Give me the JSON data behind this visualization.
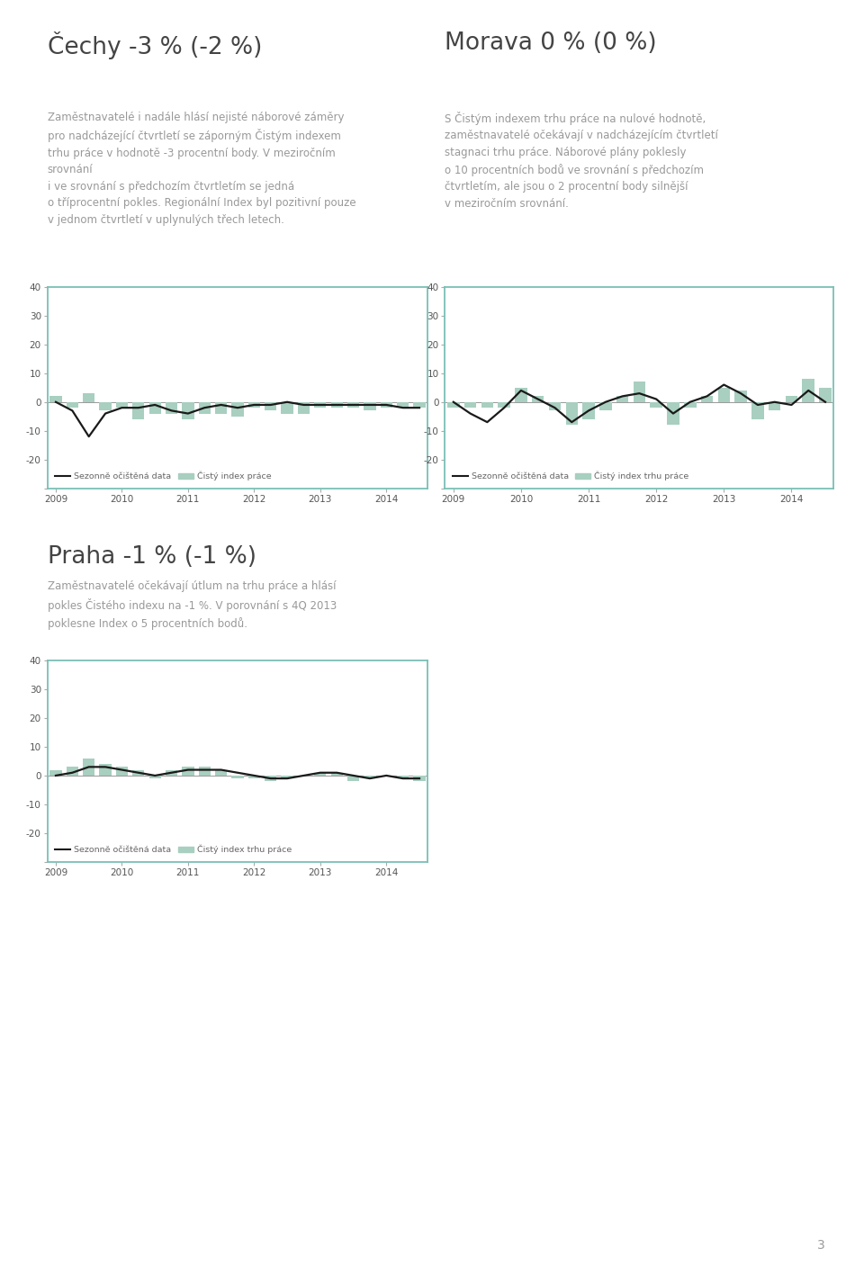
{
  "title1": "Čechy -3 % (-2 %)",
  "text1": "Zaměstnavatelé i nadále hlásí nejisté náborové záměry\npro nadcházející čtvrtletí se záporným Čistým indexem\ntrhu práce v hodnotě -3 procentní body. V meziročním\nsrovnání\ni ve srovnání s předchozím čtvrtletím se jedná\no tříprocentní pokles. Regionální Index byl pozitivní pouze\nv jednom čtvrtletí v uplynulých třech letech.",
  "title2": "Morava 0 % (0 %)",
  "text2": "S Čistým indexem trhu práce na nulové hodnotě,\nzaměstnavatelé očekávají v nadcházejícím čtvrtletí\nstagnaci trhu práce. Náborové plány poklesly\no 10 procentních bodů ve srovnání s předchozím\nčtvrtletím, ale jsou o 2 procentní body silnější\nv meziročním srovnání.",
  "title3": "Praha -1 % (-1 %)",
  "text3": "Zaměstnavatelé očekávají útlum na trhu práce a hlásí\npokles Čistého indexu na -1 %. V porovnání s 4Q 2013\npoklesne Index o 5 procentních bodů.",
  "xlabels": [
    "2009",
    "2010",
    "2011",
    "2012",
    "2013",
    "2014"
  ],
  "ylim": [
    -30,
    40
  ],
  "yticks": [
    -30,
    -20,
    -10,
    0,
    10,
    20,
    30,
    40
  ],
  "bar_color": "#a8cfc0",
  "line_color": "#1a1a1a",
  "border_color": "#7bbfb5",
  "legend_line": "Sezonně očištěná data",
  "legend_bar1": "Čistý index práce",
  "legend_bar2": "Čistý index trhu práce",
  "chart1_bars": [
    2,
    -2,
    3,
    -3,
    -2,
    -6,
    -4,
    -4,
    -6,
    -4,
    -4,
    -5,
    -2,
    -3,
    -4,
    -4,
    -2,
    -2,
    -2,
    -3,
    -2,
    -2,
    -2
  ],
  "chart1_line": [
    0,
    -3,
    -12,
    -4,
    -2,
    -2,
    -1,
    -3,
    -4,
    -2,
    -1,
    -2,
    -1,
    -1,
    0,
    -1,
    -1,
    -1,
    -1,
    -1,
    -1,
    -2,
    -2
  ],
  "chart2_bars": [
    -2,
    -2,
    -2,
    -2,
    5,
    2,
    -3,
    -8,
    -6,
    -3,
    2,
    7,
    -2,
    -8,
    -2,
    2,
    5,
    4,
    -6,
    -3,
    2,
    8,
    5
  ],
  "chart2_line": [
    0,
    -4,
    -7,
    -2,
    4,
    1,
    -2,
    -7,
    -3,
    0,
    2,
    3,
    1,
    -4,
    0,
    2,
    6,
    3,
    -1,
    0,
    -1,
    4,
    0
  ],
  "chart3_bars": [
    2,
    3,
    6,
    4,
    3,
    2,
    -1,
    2,
    3,
    3,
    2,
    -1,
    -1,
    -2,
    -1,
    0,
    1,
    1,
    -2,
    -1,
    0,
    -1,
    -2
  ],
  "chart3_line": [
    0,
    1,
    3,
    3,
    2,
    1,
    0,
    1,
    2,
    2,
    2,
    1,
    0,
    -1,
    -1,
    0,
    1,
    1,
    0,
    -1,
    0,
    -1,
    -1
  ],
  "page_number": "3",
  "background_color": "#ffffff",
  "text_color": "#999999",
  "title_color": "#444444"
}
